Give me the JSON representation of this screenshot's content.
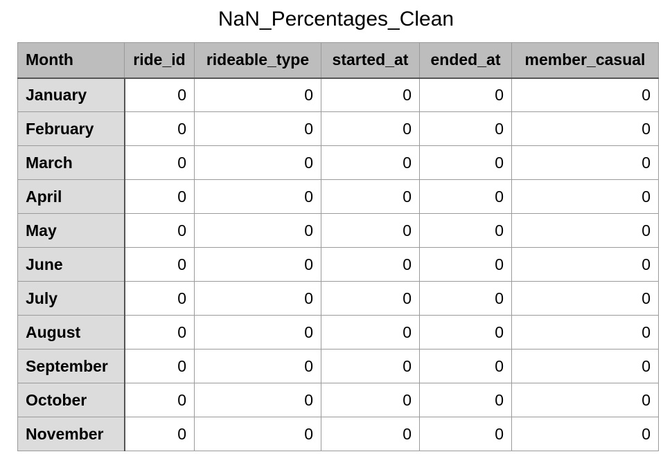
{
  "title": "NaN_Percentages_Clean",
  "table": {
    "columns": [
      "Month",
      "ride_id",
      "rideable_type",
      "started_at",
      "ended_at",
      "member_casual"
    ],
    "rows": [
      {
        "month": "January",
        "values": [
          "0",
          "0",
          "0",
          "0",
          "0"
        ]
      },
      {
        "month": "February",
        "values": [
          "0",
          "0",
          "0",
          "0",
          "0"
        ]
      },
      {
        "month": "March",
        "values": [
          "0",
          "0",
          "0",
          "0",
          "0"
        ]
      },
      {
        "month": "April",
        "values": [
          "0",
          "0",
          "0",
          "0",
          "0"
        ]
      },
      {
        "month": "May",
        "values": [
          "0",
          "0",
          "0",
          "0",
          "0"
        ]
      },
      {
        "month": "June",
        "values": [
          "0",
          "0",
          "0",
          "0",
          "0"
        ]
      },
      {
        "month": "July",
        "values": [
          "0",
          "0",
          "0",
          "0",
          "0"
        ]
      },
      {
        "month": "August",
        "values": [
          "0",
          "0",
          "0",
          "0",
          "0"
        ]
      },
      {
        "month": "September",
        "values": [
          "0",
          "0",
          "0",
          "0",
          "0"
        ]
      },
      {
        "month": "October",
        "values": [
          "0",
          "0",
          "0",
          "0",
          "0"
        ]
      },
      {
        "month": "November",
        "values": [
          "0",
          "0",
          "0",
          "0",
          "0"
        ]
      }
    ]
  },
  "colors": {
    "header_bg": "#bdbdbd",
    "row_header_bg": "#dcdcdc",
    "cell_bg": "#ffffff",
    "grid_line": "#9a9a9a"
  }
}
